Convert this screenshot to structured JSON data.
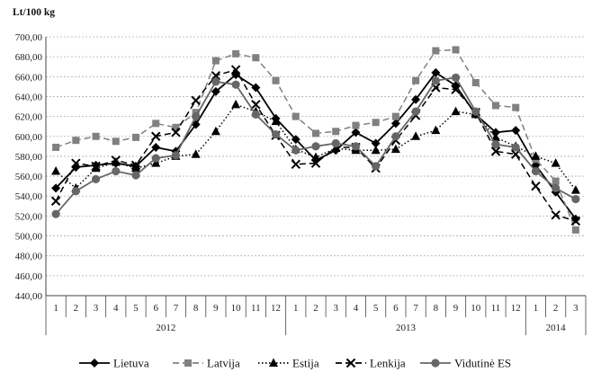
{
  "chart_data": {
    "type": "line",
    "ylabel": "Lt/100 kg",
    "ylim": [
      440,
      700
    ],
    "yticks": [
      "440,00",
      "460,00",
      "480,00",
      "500,00",
      "520,00",
      "540,00",
      "560,00",
      "580,00",
      "600,00",
      "620,00",
      "640,00",
      "660,00",
      "680,00",
      "700,00"
    ],
    "grid": true,
    "legend_position": "bottom",
    "months": [
      "1",
      "2",
      "3",
      "4",
      "5",
      "6",
      "7",
      "8",
      "9",
      "10",
      "11",
      "12",
      "1",
      "2",
      "3",
      "4",
      "5",
      "6",
      "7",
      "8",
      "9",
      "10",
      "11",
      "12",
      "1",
      "2",
      "3"
    ],
    "years": [
      "2012",
      "2013",
      "2014"
    ],
    "series": [
      {
        "name": "Lietuva",
        "color": "#000000",
        "dash": "solid",
        "marker": "diamond",
        "values": [
          548,
          569,
          571,
          573,
          570,
          589,
          585,
          612,
          645,
          662,
          649,
          618,
          597,
          576,
          586,
          604,
          593,
          613,
          637,
          664,
          651,
          622,
          604,
          606,
          571,
          544,
          517
        ]
      },
      {
        "name": "Latvija",
        "color": "#808080",
        "dash": "dashed",
        "marker": "square",
        "values": [
          589,
          596,
          600,
          595,
          599,
          613,
          609,
          624,
          676,
          683,
          679,
          656,
          620,
          603,
          605,
          611,
          614,
          620,
          656,
          686,
          687,
          654,
          631,
          629,
          577,
          555,
          506
        ]
      },
      {
        "name": "Estija",
        "color": "#000000",
        "dash": "dotted",
        "marker": "triangle",
        "values": [
          565,
          548,
          568,
          574,
          568,
          573,
          580,
          582,
          605,
          632,
          625,
          615,
          587,
          579,
          588,
          586,
          586,
          587,
          600,
          606,
          625,
          622,
          599,
          590,
          580,
          573,
          546
        ]
      },
      {
        "name": "Lenkija",
        "color": "#000000",
        "dash": "dashed",
        "marker": "cross",
        "values": [
          535,
          573,
          570,
          576,
          571,
          600,
          604,
          636,
          661,
          667,
          632,
          601,
          572,
          573,
          589,
          589,
          568,
          596,
          621,
          649,
          647,
          624,
          585,
          582,
          550,
          521,
          515
        ]
      },
      {
        "name": "Vidutinė ES",
        "color": "#666666",
        "dash": "solid",
        "marker": "circle",
        "values": [
          522,
          545,
          557,
          565,
          561,
          578,
          581,
          620,
          655,
          652,
          622,
          602,
          586,
          590,
          593,
          590,
          570,
          600,
          625,
          656,
          659,
          625,
          592,
          589,
          565,
          548,
          537
        ]
      }
    ]
  }
}
